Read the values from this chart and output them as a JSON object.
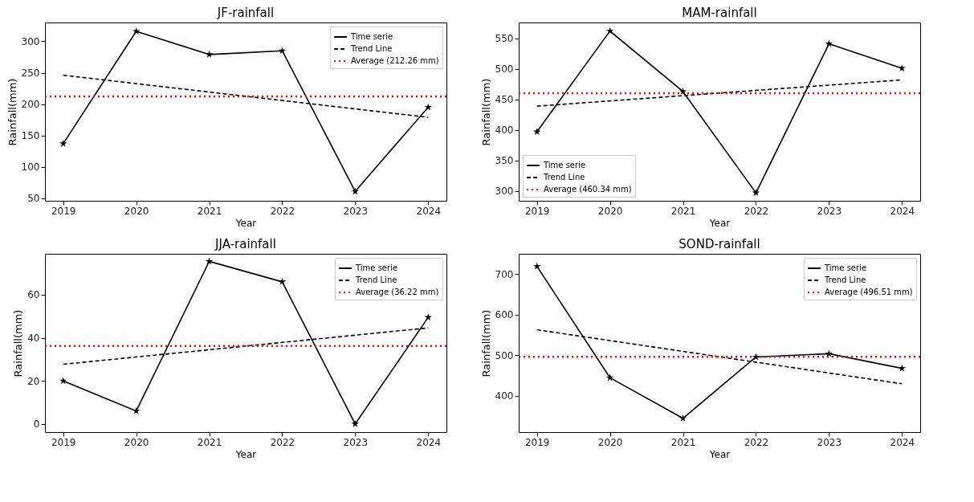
{
  "chart_data": [
    {
      "type": "line",
      "title": "JF-rainfall",
      "xlabel": "Year",
      "ylabel": "Rainfall(mm)",
      "xlim": [
        2018.75,
        2024.25
      ],
      "xticks": [
        2019,
        2020,
        2021,
        2022,
        2023,
        2024
      ],
      "ylim": [
        46,
        330
      ],
      "yticks": [
        50,
        100,
        150,
        200,
        250,
        300
      ],
      "grid": false,
      "legend": "top right",
      "marker": "star",
      "series": [
        {
          "name": "Time serie",
          "color": "#000000",
          "line_style": "solid",
          "x": [
            2019,
            2020,
            2021,
            2022,
            2023,
            2024
          ],
          "values": [
            137,
            316,
            279,
            285,
            61,
            195
          ]
        },
        {
          "name": "Trend Line",
          "color": "#000000",
          "type": "line",
          "line_style": "dashed",
          "marker": "none",
          "x": [
            2019,
            2024
          ],
          "values": [
            246,
            179
          ]
        }
      ],
      "ref_lines": [
        {
          "axis": "y",
          "value": 212.26,
          "label": "Average (212.26 mm)",
          "color": "#ff0000",
          "line_style": "dotted"
        }
      ]
    },
    {
      "type": "line",
      "title": "MAM-rainfall",
      "xlabel": "Year",
      "ylabel": "Rainfall(mm)",
      "xlim": [
        2018.75,
        2024.25
      ],
      "xticks": [
        2019,
        2020,
        2021,
        2022,
        2023,
        2024
      ],
      "ylim": [
        284,
        576
      ],
      "yticks": [
        300,
        350,
        400,
        450,
        500,
        550
      ],
      "grid": false,
      "legend": "bottom left",
      "marker": "star",
      "series": [
        {
          "name": "Time serie",
          "color": "#000000",
          "line_style": "solid",
          "x": [
            2019,
            2020,
            2021,
            2022,
            2023,
            2024
          ],
          "values": [
            397,
            562,
            463,
            297,
            541,
            501
          ]
        },
        {
          "name": "Trend Line",
          "color": "#000000",
          "type": "line",
          "line_style": "dashed",
          "marker": "none",
          "x": [
            2019,
            2024
          ],
          "values": [
            439,
            482
          ]
        }
      ],
      "ref_lines": [
        {
          "axis": "y",
          "value": 460.34,
          "label": "Average (460.34 mm)",
          "color": "#ff0000",
          "line_style": "dotted"
        }
      ]
    },
    {
      "type": "line",
      "title": "JJA-rainfall",
      "xlabel": "Year",
      "ylabel": "Rainfall(mm)",
      "xlim": [
        2018.75,
        2024.25
      ],
      "xticks": [
        2019,
        2020,
        2021,
        2022,
        2023,
        2024
      ],
      "ylim": [
        -3.8,
        79
      ],
      "yticks": [
        0,
        20,
        40,
        60
      ],
      "grid": false,
      "legend": "top right",
      "marker": "star",
      "series": [
        {
          "name": "Time serie",
          "color": "#000000",
          "line_style": "solid",
          "x": [
            2019,
            2020,
            2021,
            2022,
            2023,
            2024
          ],
          "values": [
            20,
            6,
            75.5,
            66,
            0,
            49.5
          ]
        },
        {
          "name": "Trend Line",
          "color": "#000000",
          "type": "line",
          "line_style": "dashed",
          "marker": "none",
          "x": [
            2019,
            2024
          ],
          "values": [
            27.7,
            44.6
          ]
        }
      ],
      "ref_lines": [
        {
          "axis": "y",
          "value": 36.22,
          "label": "Average (36.22 mm)",
          "color": "#ff0000",
          "line_style": "dotted"
        }
      ]
    },
    {
      "type": "line",
      "title": "SOND-rainfall",
      "xlabel": "Year",
      "ylabel": "Rainfall(mm)",
      "xlim": [
        2018.75,
        2024.25
      ],
      "xticks": [
        2019,
        2020,
        2021,
        2022,
        2023,
        2024
      ],
      "ylim": [
        311,
        750
      ],
      "yticks": [
        400,
        500,
        600,
        700
      ],
      "grid": false,
      "legend": "top right",
      "marker": "star",
      "series": [
        {
          "name": "Time serie",
          "color": "#000000",
          "line_style": "solid",
          "x": [
            2019,
            2020,
            2021,
            2022,
            2023,
            2024
          ],
          "values": [
            719,
            445,
            345,
            496,
            504,
            468
          ]
        },
        {
          "name": "Trend Line",
          "color": "#000000",
          "type": "line",
          "line_style": "dashed",
          "marker": "none",
          "x": [
            2019,
            2024
          ],
          "values": [
            563,
            430
          ]
        }
      ],
      "ref_lines": [
        {
          "axis": "y",
          "value": 496.51,
          "label": "Average (496.51 mm)",
          "color": "#ff0000",
          "line_style": "dotted"
        }
      ]
    }
  ]
}
